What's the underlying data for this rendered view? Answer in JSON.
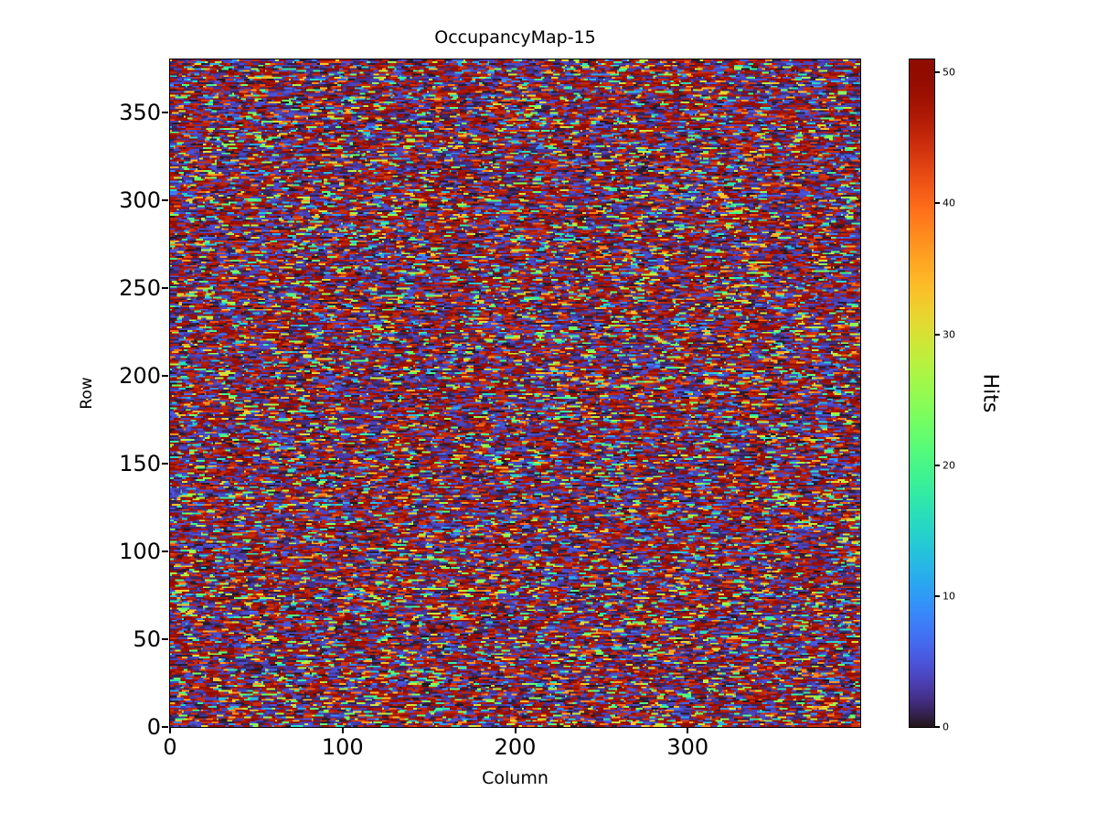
{
  "figure": {
    "background": "#ffffff",
    "text_color": "#000000"
  },
  "chart_data": {
    "type": "heatmap",
    "title": "OccupancyMap-15",
    "xlabel": "Column",
    "ylabel": "Row",
    "colorbar_label": "Hits",
    "grid_shape": [
      380,
      400
    ],
    "x_range": [
      0,
      400
    ],
    "y_range": [
      0,
      380
    ],
    "value_min": 0,
    "value_max": 51,
    "x_ticks": [
      0,
      100,
      200,
      300
    ],
    "y_ticks": [
      0,
      50,
      100,
      150,
      200,
      250,
      300,
      350
    ],
    "colorbar_ticks": [
      0,
      10,
      20,
      30,
      40,
      50
    ],
    "colormap": "turbo",
    "colormap_low": "#30123b",
    "colormap_high": "#7a0403",
    "grid": false,
    "legend_position": "colorbar-right",
    "data_description": "Dense random per-cell hit counts spanning 0 to 51: most cells are near 0 (dark navy) or near the maximum (dark red), with sparse mid-range bright cells (blue, cyan, green, yellow, orange) occurring in short horizontal runs/dashes.",
    "noise_model": {
      "seed": 15,
      "p_low": 0.42,
      "p_high": 0.38,
      "low_max": 5,
      "high_min": 44,
      "mid_min": 5,
      "mid_max": 44,
      "max_run": 5
    }
  }
}
